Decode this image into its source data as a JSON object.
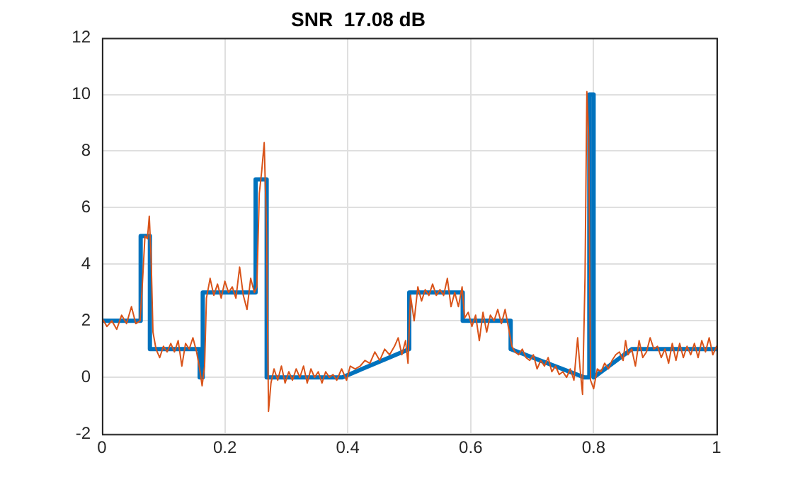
{
  "chart_data": {
    "type": "line",
    "title": "SNR  17.08 dB",
    "xlim": [
      0,
      1
    ],
    "xticks": [
      0,
      {
        "value": 0.2,
        "label": "0.2"
      },
      {
        "value": 0.4,
        "label": "0.4"
      },
      {
        "value": 0.6,
        "label": "0.6"
      },
      {
        "value": 0.8,
        "label": "0.8"
      },
      1
    ],
    "ylim": [
      -2,
      12
    ],
    "yticks": [
      -2,
      0,
      2,
      4,
      6,
      8,
      10,
      12
    ],
    "grid": true,
    "legend": false,
    "marker": "none",
    "line_style": "solid",
    "series": [
      {
        "color": "#0072bd",
        "x": [
          0,
          0.063,
          0.063,
          0.078,
          0.078,
          0.159,
          0.159,
          0.164,
          0.164,
          0.25,
          0.25,
          0.268,
          0.268,
          0.391,
          0.5,
          0.5,
          0.587,
          0.587,
          0.665,
          0.665,
          0.785,
          0.793,
          0.793,
          0.8,
          0.8,
          0.862,
          1
        ],
        "values": [
          2,
          2,
          5,
          5,
          1,
          1,
          0,
          0,
          3,
          3,
          7,
          7,
          0,
          0,
          1,
          3,
          3,
          2,
          2,
          1,
          0,
          0,
          10,
          10,
          0,
          1,
          1
        ]
      },
      {
        "color": "#d95319",
        "x": [
          0,
          0.008,
          0.016,
          0.024,
          0.032,
          0.04,
          0.048,
          0.055,
          0.062,
          0.066,
          0.07,
          0.074,
          0.077,
          0.08,
          0.083,
          0.088,
          0.094,
          0.1,
          0.106,
          0.112,
          0.118,
          0.124,
          0.13,
          0.136,
          0.142,
          0.148,
          0.154,
          0.159,
          0.163,
          0.167,
          0.17,
          0.176,
          0.182,
          0.188,
          0.194,
          0.2,
          0.206,
          0.212,
          0.218,
          0.224,
          0.23,
          0.236,
          0.242,
          0.248,
          0.252,
          0.256,
          0.26,
          0.264,
          0.268,
          0.271,
          0.275,
          0.28,
          0.286,
          0.292,
          0.298,
          0.304,
          0.31,
          0.316,
          0.322,
          0.328,
          0.334,
          0.34,
          0.346,
          0.352,
          0.358,
          0.364,
          0.37,
          0.376,
          0.382,
          0.39,
          0.398,
          0.404,
          0.412,
          0.42,
          0.428,
          0.436,
          0.444,
          0.452,
          0.46,
          0.468,
          0.476,
          0.482,
          0.488,
          0.494,
          0.498,
          0.502,
          0.508,
          0.514,
          0.52,
          0.526,
          0.532,
          0.538,
          0.544,
          0.55,
          0.556,
          0.562,
          0.568,
          0.574,
          0.58,
          0.586,
          0.59,
          0.596,
          0.602,
          0.608,
          0.614,
          0.62,
          0.626,
          0.632,
          0.638,
          0.644,
          0.65,
          0.656,
          0.662,
          0.667,
          0.672,
          0.678,
          0.684,
          0.69,
          0.696,
          0.702,
          0.708,
          0.714,
          0.72,
          0.726,
          0.732,
          0.738,
          0.744,
          0.75,
          0.756,
          0.762,
          0.768,
          0.774,
          0.778,
          0.782,
          0.786,
          0.789,
          0.792,
          0.795,
          0.8,
          0.806,
          0.812,
          0.818,
          0.824,
          0.83,
          0.836,
          0.842,
          0.848,
          0.852,
          0.856,
          0.862,
          0.868,
          0.874,
          0.88,
          0.886,
          0.892,
          0.898,
          0.904,
          0.91,
          0.916,
          0.922,
          0.928,
          0.934,
          0.94,
          0.946,
          0.952,
          0.958,
          0.964,
          0.97,
          0.976,
          0.982,
          0.988,
          0.994,
          1
        ],
        "values": [
          2.1,
          1.8,
          2,
          1.7,
          2.2,
          1.9,
          2.5,
          1.9,
          2,
          3.4,
          5,
          4.9,
          5.7,
          4.2,
          1.6,
          1,
          0.7,
          1.1,
          0.9,
          1.2,
          0.9,
          1.3,
          0.4,
          1.2,
          1,
          1.4,
          0.9,
          0.3,
          -0.3,
          0.4,
          2.8,
          3.5,
          2.9,
          3.3,
          2.8,
          3.4,
          3,
          3.2,
          2.8,
          3.9,
          2.9,
          2.4,
          3.5,
          3,
          3.2,
          6.5,
          7.3,
          8.3,
          5,
          -1.2,
          -0.2,
          0.3,
          -0.1,
          0.4,
          -0.2,
          0.2,
          -0.1,
          0.3,
          0,
          0.4,
          -0.2,
          0.3,
          0,
          0.2,
          -0.2,
          0.2,
          0,
          0.1,
          -0.1,
          0.3,
          -0.1,
          0.4,
          0.3,
          0.4,
          0.6,
          0.5,
          0.9,
          0.6,
          1,
          0.8,
          1.1,
          1.4,
          0.8,
          1.3,
          0.5,
          2.9,
          2,
          3.2,
          2.7,
          3.1,
          2.9,
          3.3,
          2.9,
          3.1,
          2.9,
          3.5,
          2.5,
          3,
          2.5,
          3.2,
          2.1,
          2.3,
          1.8,
          2.2,
          1.3,
          2.3,
          1.6,
          2.2,
          2,
          2.4,
          1.9,
          2.4,
          1.7,
          1.1,
          0.9,
          0.8,
          1,
          0.7,
          0.6,
          0.8,
          0.3,
          0.6,
          0.4,
          0.7,
          0.2,
          0.4,
          0.1,
          0.2,
          0,
          0.3,
          -0.1,
          1.4,
          0.3,
          -0.6,
          3.5,
          10.1,
          8.5,
          -0.1,
          -0.4,
          0.3,
          0.2,
          0.5,
          0.3,
          0.6,
          0.8,
          0.9,
          0.6,
          1.3,
          0.8,
          1,
          0.4,
          1.3,
          0.7,
          0.9,
          1.4,
          1,
          1.1,
          0.7,
          1,
          0.5,
          1.2,
          0.6,
          1.2,
          0.7,
          1.1,
          0.8,
          1.2,
          0.7,
          1.3,
          0.9,
          1.4,
          0.8,
          1.1
        ]
      }
    ]
  }
}
